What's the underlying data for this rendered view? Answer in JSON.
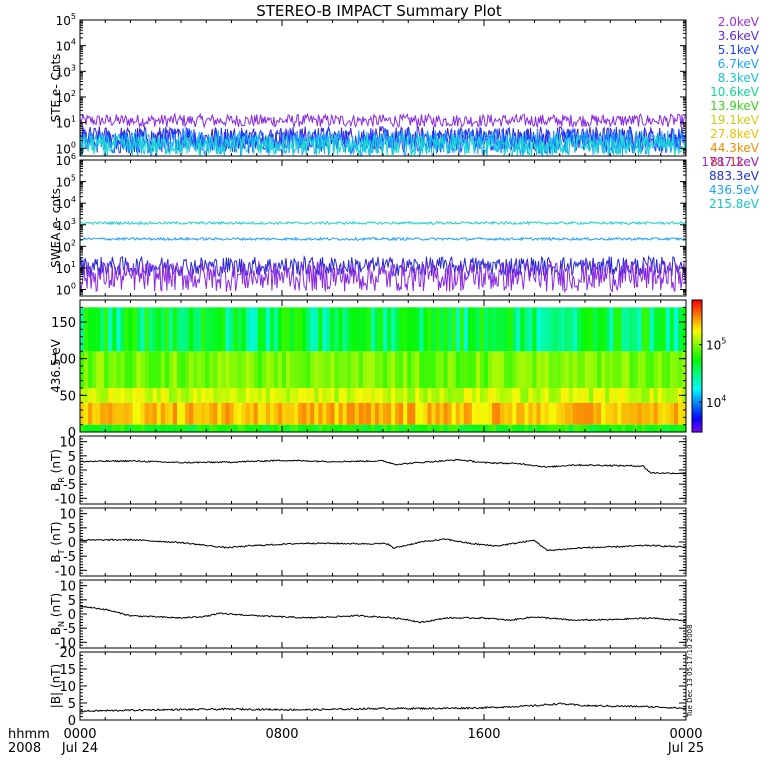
{
  "title": "STEREO-B IMPACT Summary Plot",
  "timestamp_vertical": "Tue Dec 13 05:17:10 2008",
  "time_axis": {
    "unit_label": "hhmm",
    "year_label": "2008",
    "ticks": [
      {
        "hour": 0,
        "label": "0000",
        "sublabel": "Jul 24"
      },
      {
        "hour": 8,
        "label": "0800",
        "sublabel": ""
      },
      {
        "hour": 16,
        "label": "1600",
        "sublabel": ""
      },
      {
        "hour": 24,
        "label": "0000",
        "sublabel": "Jul 25"
      }
    ]
  },
  "chart_data": [
    {
      "type": "line",
      "id": "ste",
      "ylabel": "STE e- Cnts",
      "yscale": "log",
      "ylim": [
        0.5,
        100000
      ],
      "yticks": [
        {
          "v": 1,
          "e": "0"
        },
        {
          "v": 10,
          "e": "1"
        },
        {
          "v": 100,
          "e": "2"
        },
        {
          "v": 1000,
          "e": "3"
        },
        {
          "v": 10000,
          "e": "4"
        },
        {
          "v": 100000,
          "e": "5"
        }
      ],
      "x_hours": [
        0,
        24
      ],
      "series": [
        {
          "name": "2.0keV",
          "color": "#8a2be2",
          "level": 12,
          "noise": 0.25
        },
        {
          "name": "3.6keV",
          "color": "#3a1fcf",
          "level": 2.6,
          "noise": 0.45
        },
        {
          "name": "5.1keV",
          "color": "#1f3fff",
          "level": 2.0,
          "noise": 0.5
        },
        {
          "name": "6.7keV",
          "color": "#1aa8ff",
          "level": 1.6,
          "noise": 0.5
        },
        {
          "name": "8.3keV",
          "color": "#18d8d0",
          "level": 1.3,
          "noise": 0.4
        }
      ],
      "legend": [
        {
          "label": "2.0keV",
          "color": "#9b30d9"
        },
        {
          "label": "3.6keV",
          "color": "#5a2bd8"
        },
        {
          "label": "5.1keV",
          "color": "#2040ff"
        },
        {
          "label": "6.7keV",
          "color": "#1ca0ff"
        },
        {
          "label": "8.3keV",
          "color": "#12c8c8"
        },
        {
          "label": "10.6keV",
          "color": "#10d890"
        },
        {
          "label": "13.9keV",
          "color": "#40d020"
        },
        {
          "label": "19.1keV",
          "color": "#c8d010"
        },
        {
          "label": "27.8keV",
          "color": "#f0c000"
        },
        {
          "label": "44.3keV",
          "color": "#f08c00"
        },
        {
          "label": "81.1keV",
          "color": "#e83010"
        }
      ]
    },
    {
      "type": "line",
      "id": "swea",
      "ylabel": "SWEA e- cnts",
      "yscale": "log",
      "ylim": [
        0.5,
        1000000
      ],
      "yticks": [
        {
          "v": 1,
          "e": "0"
        },
        {
          "v": 10,
          "e": "1"
        },
        {
          "v": 100,
          "e": "2"
        },
        {
          "v": 1000,
          "e": "3"
        },
        {
          "v": 10000,
          "e": "4"
        },
        {
          "v": 100000,
          "e": "5"
        },
        {
          "v": 1000000,
          "e": "6"
        }
      ],
      "x_hours": [
        0,
        24
      ],
      "series": [
        {
          "name": "215.8eV",
          "color": "#20d0c8",
          "level": 1200,
          "noise": 0.06
        },
        {
          "name": "436.5eV",
          "color": "#1ea0ff",
          "level": 220,
          "noise": 0.06
        },
        {
          "name": "883.3eV",
          "color": "#2a2ad0",
          "level": 12,
          "noise": 0.45
        },
        {
          "name": "1787.2eV",
          "color": "#8a2be2",
          "level": 4,
          "noise": 0.7
        }
      ],
      "legend": [
        {
          "label": "1787.2eV",
          "color": "#9b30d9"
        },
        {
          "label": "883.3eV",
          "color": "#2030c8"
        },
        {
          "label": "436.5eV",
          "color": "#1ca0ff"
        },
        {
          "label": "215.8eV",
          "color": "#12c8c8"
        }
      ]
    },
    {
      "type": "heatmap",
      "id": "pitch",
      "ylabel": "436.5 eV",
      "ylim": [
        0,
        180
      ],
      "yticks": [
        0,
        50,
        100,
        150
      ],
      "x_hours": [
        0,
        24
      ],
      "colorbar": {
        "scale": "log",
        "range": [
          3000,
          600000
        ],
        "ticks": [
          {
            "v": 10000,
            "e": "4"
          },
          {
            "v": 100000,
            "e": "5"
          }
        ]
      },
      "bands": [
        {
          "y": [
            0,
            10
          ],
          "value": 60000
        },
        {
          "y": [
            10,
            40
          ],
          "value": 250000
        },
        {
          "y": [
            40,
            60
          ],
          "value": 150000
        },
        {
          "y": [
            60,
            110
          ],
          "value": 100000
        },
        {
          "y": [
            110,
            170
          ],
          "value": 55000
        }
      ]
    },
    {
      "type": "line",
      "id": "br",
      "ylabel": "B_R (nT)",
      "ylim": [
        -12,
        12
      ],
      "yticks": [
        -10,
        -5,
        0,
        5,
        10
      ],
      "x_hours": [
        0,
        24
      ],
      "series": [
        {
          "name": "B_R",
          "color": "#000000",
          "points": [
            [
              0,
              3.0
            ],
            [
              2,
              3.2
            ],
            [
              4,
              2.6
            ],
            [
              6,
              2.8
            ],
            [
              8,
              3.4
            ],
            [
              10,
              3.0
            ],
            [
              12,
              3.2
            ],
            [
              12.5,
              2.0
            ],
            [
              14,
              3.0
            ],
            [
              15,
              3.6
            ],
            [
              16,
              2.6
            ],
            [
              17.5,
              2.2
            ],
            [
              18.5,
              1.0
            ],
            [
              19.5,
              1.8
            ],
            [
              21,
              1.6
            ],
            [
              22.3,
              1.4
            ],
            [
              22.6,
              -1.0
            ],
            [
              24,
              -1.2
            ]
          ]
        }
      ]
    },
    {
      "type": "line",
      "id": "bt",
      "ylabel": "B_T (nT)",
      "ylim": [
        -12,
        12
      ],
      "yticks": [
        -10,
        -5,
        0,
        5,
        10
      ],
      "x_hours": [
        0,
        24
      ],
      "series": [
        {
          "name": "B_T",
          "color": "#000000",
          "points": [
            [
              0,
              0.6
            ],
            [
              2,
              0.8
            ],
            [
              4,
              -0.2
            ],
            [
              5.8,
              -2.0
            ],
            [
              7,
              -1.2
            ],
            [
              9,
              -0.4
            ],
            [
              11,
              -0.6
            ],
            [
              12.2,
              -0.6
            ],
            [
              12.4,
              -2.2
            ],
            [
              13.5,
              0
            ],
            [
              14.5,
              1.0
            ],
            [
              15.5,
              -0.6
            ],
            [
              16.5,
              -1.4
            ],
            [
              18,
              0.6
            ],
            [
              18.5,
              -3.0
            ],
            [
              20,
              -2.0
            ],
            [
              21,
              -1.8
            ],
            [
              22.5,
              -1.2
            ],
            [
              24,
              -1.8
            ]
          ]
        }
      ]
    },
    {
      "type": "line",
      "id": "bn",
      "ylabel": "B_N (nT)",
      "ylim": [
        -12,
        12
      ],
      "yticks": [
        -10,
        -5,
        0,
        5,
        10
      ],
      "x_hours": [
        0,
        24
      ],
      "series": [
        {
          "name": "B_N",
          "color": "#000000",
          "points": [
            [
              0,
              2.8
            ],
            [
              1,
              1.6
            ],
            [
              2,
              -0.6
            ],
            [
              4,
              -1.4
            ],
            [
              5,
              -0.8
            ],
            [
              5.5,
              0.2
            ],
            [
              7,
              -0.6
            ],
            [
              9,
              -1.4
            ],
            [
              11,
              -0.6
            ],
            [
              12.2,
              -1.2
            ],
            [
              13,
              -2.0
            ],
            [
              13.5,
              -3.0
            ],
            [
              14.5,
              -1.4
            ],
            [
              16,
              -1.4
            ],
            [
              17,
              -2.2
            ],
            [
              18,
              -1.0
            ],
            [
              19.5,
              -2.2
            ],
            [
              21,
              -2.0
            ],
            [
              22.6,
              -1.4
            ],
            [
              24,
              -2.4
            ]
          ]
        }
      ]
    },
    {
      "type": "line",
      "id": "bmag",
      "ylabel": "|B| (nT)",
      "ylim": [
        0,
        20
      ],
      "yticks": [
        0,
        5,
        10,
        15,
        20
      ],
      "x_hours": [
        0,
        24
      ],
      "series": [
        {
          "name": "|B|",
          "color": "#000000",
          "points": [
            [
              0,
              2.6
            ],
            [
              3,
              3.0
            ],
            [
              6,
              3.2
            ],
            [
              9,
              3.0
            ],
            [
              12,
              3.4
            ],
            [
              14,
              3.4
            ],
            [
              16,
              3.6
            ],
            [
              18,
              4.2
            ],
            [
              19,
              4.8
            ],
            [
              20,
              4.2
            ],
            [
              22,
              4.0
            ],
            [
              23,
              3.8
            ],
            [
              24,
              3.4
            ]
          ]
        }
      ]
    }
  ]
}
